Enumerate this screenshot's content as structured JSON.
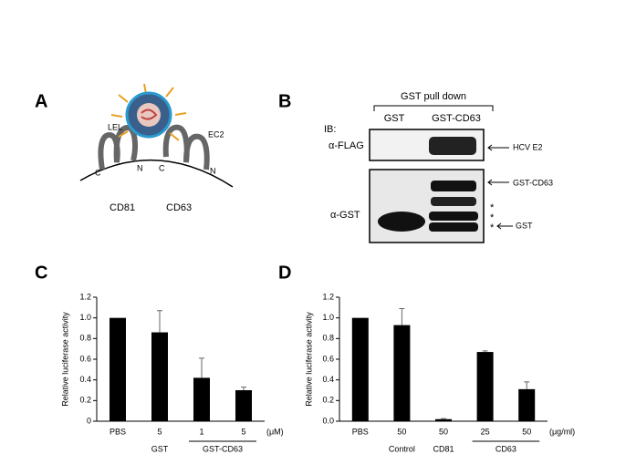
{
  "panels": {
    "a": {
      "label": "A",
      "lel": "LEL",
      "ec2": "EC2",
      "cd81": "CD81",
      "cd63": "CD63",
      "termini": [
        "C",
        "N",
        "C",
        "N"
      ]
    },
    "b": {
      "label": "B",
      "pull_down": "GST pull down",
      "ib": "IB:",
      "lanes": [
        "GST",
        "GST-CD63"
      ],
      "antibodies": [
        "α-FLAG",
        "α-GST"
      ],
      "bands": [
        "HCV E2",
        "GST-CD63",
        "GST"
      ],
      "asterisks": [
        "*",
        "*",
        "*"
      ]
    }
  },
  "chart_data": [
    {
      "type": "bar",
      "panel": "C",
      "y_label": "Relative luciferase activity",
      "categories": [
        "PBS",
        "5",
        "1",
        "5"
      ],
      "values": [
        1.0,
        0.86,
        0.42,
        0.3
      ],
      "errors": [
        0,
        0.21,
        0.19,
        0.03
      ],
      "groups": [
        {
          "name": "GST",
          "span": [
            1,
            1
          ]
        },
        {
          "name": "GST-CD63",
          "span": [
            2,
            3
          ]
        }
      ],
      "unit": "(μM)",
      "color": "#000000",
      "ylim": [
        0,
        1.2
      ],
      "yticks": [
        0,
        0.2,
        0.4,
        0.6,
        0.8,
        {
          "value": 1,
          "label": "1.0"
        },
        1.2
      ]
    },
    {
      "type": "bar",
      "panel": "D",
      "y_label": "Relative luciferase activity",
      "categories": [
        "PBS",
        "50",
        "50",
        "25",
        "50"
      ],
      "values": [
        1.0,
        0.93,
        0.02,
        0.67,
        0.31
      ],
      "errors": [
        0,
        0.16,
        0.005,
        0.01,
        0.07
      ],
      "groups": [
        {
          "name": "Control",
          "span": [
            1,
            1
          ]
        },
        {
          "name": "CD81",
          "span": [
            2,
            2
          ]
        },
        {
          "name": "CD63",
          "span": [
            3,
            4
          ]
        }
      ],
      "unit": "(μg/ml)",
      "color": "#000000",
      "ylim": [
        0,
        1.2
      ],
      "yticks": [
        {
          "value": 0,
          "label": "0.0"
        },
        0.2,
        0.4,
        0.6,
        0.8,
        {
          "value": 1,
          "label": "1.0"
        },
        1.2
      ]
    }
  ]
}
